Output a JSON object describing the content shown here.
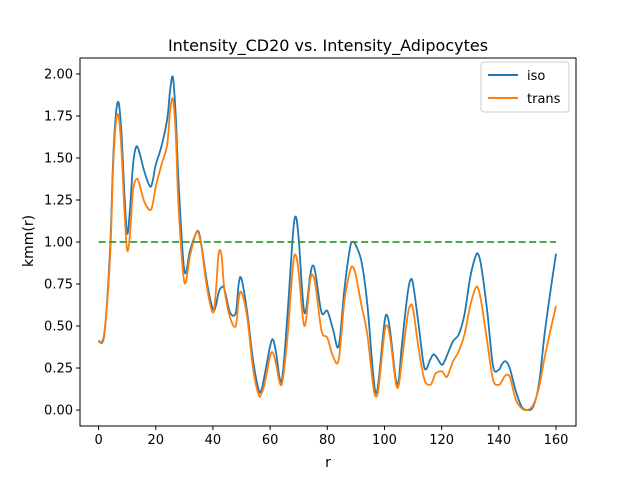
{
  "chart_data": {
    "type": "line",
    "title": "Intensity_CD20 vs. Intensity_Adipocytes",
    "xlabel": "r",
    "ylabel": "kmm(r)",
    "xlim": [
      -6.5,
      167
    ],
    "ylim": [
      -0.095,
      2.095
    ],
    "xticks": [
      0,
      20,
      40,
      60,
      80,
      100,
      120,
      140,
      160
    ],
    "yticks": [
      "0.00",
      "0.25",
      "0.50",
      "0.75",
      "1.00",
      "1.25",
      "1.50",
      "1.75",
      "2.00"
    ],
    "legend_position": "top-right",
    "grid": false,
    "series": [
      {
        "name": "iso",
        "color": "#1f77b4",
        "dashed": false,
        "x": [
          0,
          2,
          4,
          5,
          6,
          7,
          8,
          9,
          10,
          11,
          12,
          13,
          14,
          16,
          18,
          19,
          20,
          22,
          24,
          25,
          26,
          27,
          28,
          30,
          32,
          34,
          35,
          36,
          38,
          40,
          41,
          42,
          43,
          44,
          46,
          48,
          49,
          50,
          52,
          54,
          56,
          57,
          58,
          60,
          61,
          62,
          64,
          66,
          68,
          69,
          70,
          72,
          74,
          75,
          76,
          78,
          80,
          82,
          84,
          86,
          88,
          89,
          90,
          92,
          94,
          96,
          97,
          98,
          100,
          101,
          102,
          104,
          105,
          106,
          108,
          109,
          110,
          112,
          114,
          116,
          117,
          118,
          120,
          121,
          122,
          124,
          126,
          128,
          130,
          132,
          133,
          134,
          136,
          138,
          140,
          141,
          142,
          143,
          144,
          146,
          148,
          150,
          152,
          154,
          156,
          158,
          160
        ],
        "y": [
          0.41,
          0.45,
          0.95,
          1.45,
          1.75,
          1.83,
          1.65,
          1.3,
          1.05,
          1.2,
          1.45,
          1.56,
          1.55,
          1.42,
          1.33,
          1.37,
          1.46,
          1.57,
          1.73,
          1.9,
          1.98,
          1.75,
          1.35,
          0.83,
          0.95,
          1.05,
          1.06,
          0.98,
          0.75,
          0.6,
          0.62,
          0.7,
          0.73,
          0.72,
          0.58,
          0.58,
          0.75,
          0.78,
          0.58,
          0.3,
          0.12,
          0.12,
          0.2,
          0.38,
          0.42,
          0.35,
          0.17,
          0.55,
          1.05,
          1.15,
          1.02,
          0.58,
          0.8,
          0.86,
          0.8,
          0.58,
          0.59,
          0.48,
          0.38,
          0.72,
          0.97,
          1.0,
          0.98,
          0.88,
          0.63,
          0.22,
          0.1,
          0.18,
          0.52,
          0.56,
          0.47,
          0.18,
          0.18,
          0.37,
          0.68,
          0.77,
          0.75,
          0.5,
          0.25,
          0.3,
          0.33,
          0.32,
          0.27,
          0.29,
          0.33,
          0.41,
          0.45,
          0.57,
          0.79,
          0.92,
          0.92,
          0.84,
          0.58,
          0.26,
          0.24,
          0.27,
          0.29,
          0.28,
          0.24,
          0.11,
          0.02,
          0.0,
          0.02,
          0.15,
          0.45,
          0.7,
          0.93
        ]
      },
      {
        "name": "trans",
        "color": "#ff7f0e",
        "dashed": false,
        "x": [
          0,
          2,
          4,
          5,
          6,
          7,
          8,
          9,
          10,
          11,
          12,
          13,
          14,
          16,
          18,
          19,
          20,
          22,
          24,
          25,
          26,
          27,
          28,
          30,
          32,
          34,
          35,
          36,
          38,
          40,
          41,
          42,
          43,
          44,
          46,
          48,
          49,
          50,
          52,
          54,
          56,
          57,
          58,
          60,
          61,
          62,
          64,
          66,
          68,
          69,
          70,
          72,
          74,
          75,
          76,
          78,
          80,
          82,
          84,
          86,
          88,
          89,
          90,
          92,
          94,
          96,
          97,
          98,
          100,
          101,
          102,
          104,
          105,
          106,
          108,
          109,
          110,
          112,
          114,
          116,
          117,
          118,
          120,
          121,
          122,
          124,
          126,
          128,
          130,
          132,
          133,
          134,
          136,
          138,
          140,
          141,
          142,
          143,
          144,
          146,
          148,
          150,
          152,
          154,
          156,
          158,
          160
        ],
        "y": [
          0.4,
          0.46,
          0.9,
          1.4,
          1.7,
          1.75,
          1.55,
          1.2,
          0.95,
          1.05,
          1.3,
          1.37,
          1.36,
          1.24,
          1.19,
          1.23,
          1.33,
          1.46,
          1.58,
          1.78,
          1.85,
          1.64,
          1.2,
          0.76,
          0.92,
          1.05,
          1.05,
          0.97,
          0.72,
          0.58,
          0.7,
          0.93,
          0.92,
          0.72,
          0.55,
          0.5,
          0.66,
          0.7,
          0.55,
          0.25,
          0.09,
          0.1,
          0.15,
          0.32,
          0.34,
          0.28,
          0.15,
          0.42,
          0.86,
          0.92,
          0.82,
          0.5,
          0.77,
          0.8,
          0.73,
          0.47,
          0.43,
          0.32,
          0.3,
          0.65,
          0.83,
          0.85,
          0.8,
          0.62,
          0.45,
          0.15,
          0.08,
          0.14,
          0.46,
          0.5,
          0.43,
          0.16,
          0.15,
          0.28,
          0.55,
          0.62,
          0.6,
          0.36,
          0.18,
          0.15,
          0.18,
          0.22,
          0.23,
          0.21,
          0.2,
          0.29,
          0.35,
          0.45,
          0.62,
          0.73,
          0.71,
          0.63,
          0.4,
          0.18,
          0.15,
          0.17,
          0.2,
          0.21,
          0.19,
          0.06,
          0.01,
          0.0,
          0.03,
          0.13,
          0.31,
          0.47,
          0.62
        ]
      },
      {
        "name": "",
        "color": "#2ca02c",
        "dashed": true,
        "x": [
          0,
          160
        ],
        "y": [
          1.0,
          1.0
        ]
      }
    ]
  }
}
